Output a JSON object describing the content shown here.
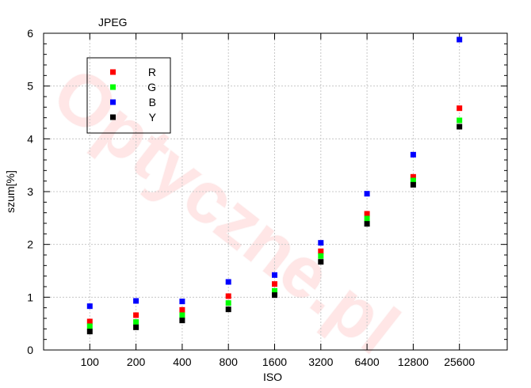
{
  "watermark": "Optyczne.pl",
  "chart_data": {
    "type": "scatter",
    "title": "JPEG",
    "xlabel": "ISO",
    "ylabel": "szum[%]",
    "categories": [
      "100",
      "200",
      "400",
      "800",
      "1600",
      "3200",
      "6400",
      "12800",
      "25600"
    ],
    "ylim": [
      0,
      6
    ],
    "yticks": [
      0,
      1,
      2,
      3,
      4,
      5,
      6
    ],
    "grid": true,
    "legend_position": "top-left",
    "series": [
      {
        "name": "R",
        "color": "#ff0000",
        "values": [
          0.54,
          0.66,
          0.76,
          1.02,
          1.25,
          1.87,
          2.58,
          3.28,
          4.58
        ]
      },
      {
        "name": "G",
        "color": "#00ff00",
        "values": [
          0.45,
          0.53,
          0.66,
          0.89,
          1.12,
          1.78,
          2.49,
          3.21,
          4.35
        ]
      },
      {
        "name": "B",
        "color": "#0000ff",
        "values": [
          0.83,
          0.93,
          0.92,
          1.29,
          1.42,
          2.03,
          2.96,
          3.7,
          5.88
        ]
      },
      {
        "name": "Y",
        "color": "#000000",
        "values": [
          0.35,
          0.43,
          0.56,
          0.77,
          1.04,
          1.67,
          2.39,
          3.13,
          4.23
        ]
      }
    ]
  }
}
